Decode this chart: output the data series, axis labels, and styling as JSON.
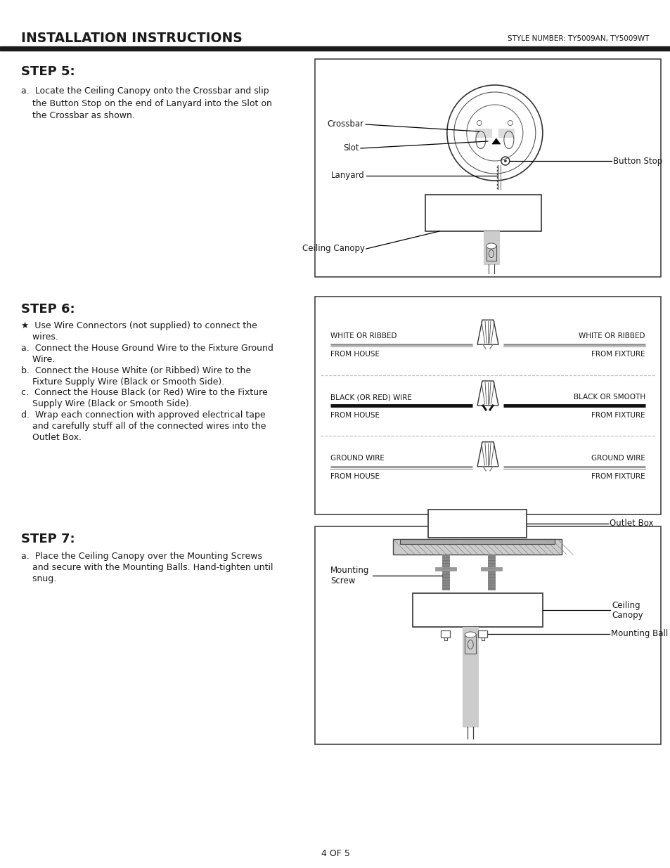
{
  "title": "INSTALLATION INSTRUCTIONS",
  "style_number": "STYLE NUMBER: TY5009AN, TY5009WT",
  "page_number": "4 OF 5",
  "bg_color": "#ffffff",
  "header_bar_color": "#1a1a1a",
  "step5_heading": "STEP 5:",
  "step5_text_a": "a.  Locate the Ceiling Canopy onto the Crossbar and slip",
  "step5_text_b": "    the Button Stop on the end of Lanyard into the Slot on",
  "step5_text_c": "    the Crossbar as shown.",
  "step6_heading": "STEP 6:",
  "step6_lines": [
    "★  Use Wire Connectors (not supplied) to connect the",
    "    wires.",
    "a.  Connect the House Ground Wire to the Fixture Ground",
    "    Wire.",
    "b.  Connect the House White (or Ribbed) Wire to the",
    "    Fixture Supply Wire (Black or Smooth Side).",
    "c.  Connect the House Black (or Red) Wire to the Fixture",
    "    Supply Wire (Black or Smooth Side).",
    "d.  Wrap each connection with approved electrical tape",
    "    and carefully stuff all of the connected wires into the",
    "    Outlet Box."
  ],
  "step7_heading": "STEP 7:",
  "step7_lines": [
    "a.  Place the Ceiling Canopy over the Mounting Screws",
    "    and secure with the Mounting Balls. Hand-tighten until",
    "    snug."
  ],
  "text_color": "#1a1a1a",
  "dark_color": "#1a1a1a",
  "gray_color": "#888888",
  "light_gray": "#cccccc"
}
